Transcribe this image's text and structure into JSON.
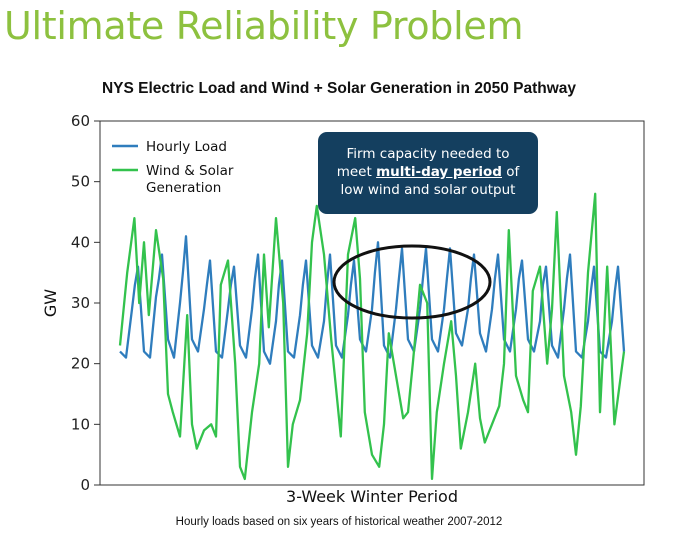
{
  "slide_title": "Ultimate Reliability Problem",
  "footnote": "Hourly loads based on six years of historical weather 2007-2012",
  "callout": {
    "line1": "Firm capacity needed to",
    "prefix": "meet ",
    "emphasis": "multi-day period",
    "suffix": " of",
    "line3": "low wind and solar output"
  },
  "colors": {
    "title_green": "#8dc13f",
    "load_blue": "#2f7dbd",
    "wind_green": "#33c24d",
    "callout_bg": "#143f5f"
  },
  "chart_data": {
    "type": "line",
    "title": "NYS Electric Load and Wind + Solar Generation in 2050 Pathway",
    "xlabel": "3-Week Winter Period",
    "ylabel": "GW",
    "ylim": [
      0,
      60
    ],
    "yticks": [
      0,
      10,
      20,
      30,
      40,
      50,
      60
    ],
    "grid": false,
    "legend_position": "top-left",
    "x_unit": "day",
    "x_range": [
      0,
      21
    ],
    "series": [
      {
        "name": "Hourly Load",
        "color": "#2f7dbd",
        "x": [
          0,
          0.25,
          0.5,
          0.62,
          0.75,
          1,
          1.25,
          1.5,
          1.62,
          1.75,
          2,
          2.25,
          2.5,
          2.62,
          2.75,
          3,
          3.25,
          3.5,
          3.62,
          3.75,
          4,
          4.25,
          4.5,
          4.62,
          4.75,
          5,
          5.25,
          5.5,
          5.62,
          5.75,
          6,
          6.25,
          6.5,
          6.62,
          6.75,
          7,
          7.25,
          7.5,
          7.62,
          7.75,
          8,
          8.25,
          8.5,
          8.62,
          8.75,
          9,
          9.25,
          9.5,
          9.62,
          9.75,
          10,
          10.25,
          10.5,
          10.62,
          10.75,
          11,
          11.25,
          11.5,
          11.62,
          11.75,
          12,
          12.25,
          12.5,
          12.62,
          12.75,
          13,
          13.25,
          13.5,
          13.62,
          13.75,
          14,
          14.25,
          14.5,
          14.62,
          14.75,
          15,
          15.25,
          15.5,
          15.62,
          15.75,
          16,
          16.25,
          16.5,
          16.62,
          16.75,
          17,
          17.25,
          17.5,
          17.62,
          17.75,
          18,
          18.25,
          18.5,
          18.62,
          18.75,
          19,
          19.25,
          19.5,
          19.62,
          19.75,
          20,
          20.25,
          20.5,
          20.62,
          20.75,
          21
        ],
        "y": [
          22,
          21,
          29,
          33,
          36,
          22,
          21,
          31,
          34,
          38,
          24,
          21,
          30,
          35,
          41,
          24,
          22,
          29,
          33,
          37,
          22,
          21,
          29,
          33,
          36,
          23,
          21,
          29,
          34,
          38,
          22,
          20,
          27,
          33,
          37,
          22,
          21,
          28,
          33,
          37,
          23,
          21,
          27,
          33,
          38,
          23,
          21,
          28,
          33,
          37,
          24,
          22,
          29,
          35,
          40,
          23,
          21,
          29,
          34,
          39,
          24,
          22,
          29,
          34,
          39,
          24,
          22,
          29,
          34,
          39,
          25,
          23,
          29,
          34,
          38,
          25,
          22,
          29,
          34,
          38,
          24,
          22,
          29,
          34,
          37,
          24,
          22,
          27,
          33,
          36,
          23,
          21,
          29,
          34,
          38,
          22,
          21,
          27,
          32,
          36,
          22,
          21,
          27,
          32,
          36,
          22
        ]
      },
      {
        "name": "Wind & Solar Generation",
        "color": "#33c24d",
        "x": [
          0,
          0.3,
          0.6,
          0.8,
          1.0,
          1.2,
          1.5,
          1.8,
          2.0,
          2.2,
          2.5,
          2.8,
          3.0,
          3.2,
          3.5,
          3.8,
          4.0,
          4.2,
          4.5,
          4.8,
          5.0,
          5.2,
          5.5,
          5.8,
          6.0,
          6.2,
          6.5,
          6.8,
          7.0,
          7.2,
          7.5,
          7.8,
          8.0,
          8.2,
          8.5,
          8.8,
          9.0,
          9.2,
          9.5,
          9.8,
          10.0,
          10.2,
          10.5,
          10.8,
          11.0,
          11.2,
          11.5,
          11.8,
          12.0,
          12.2,
          12.5,
          12.8,
          13.0,
          13.2,
          13.5,
          13.8,
          14.0,
          14.2,
          14.5,
          14.8,
          15.0,
          15.2,
          15.5,
          15.8,
          16.0,
          16.2,
          16.5,
          16.8,
          17.0,
          17.2,
          17.5,
          17.8,
          18.0,
          18.2,
          18.5,
          18.8,
          19.0,
          19.2,
          19.5,
          19.8,
          20.0,
          20.3,
          20.6,
          21.0
        ],
        "y": [
          23,
          35,
          44,
          30,
          40,
          28,
          42,
          34,
          15,
          12,
          8,
          28,
          10,
          6,
          9,
          10,
          8,
          33,
          37,
          20,
          3,
          1,
          12,
          20,
          38,
          26,
          44,
          30,
          3,
          10,
          14,
          25,
          40,
          46,
          38,
          24,
          16,
          8,
          38,
          44,
          34,
          12,
          5,
          3,
          10,
          25,
          18,
          11,
          12,
          20,
          33,
          30,
          1,
          12,
          20,
          27,
          18,
          6,
          12,
          20,
          11,
          7,
          10,
          13,
          20,
          42,
          18,
          14,
          12,
          32,
          36,
          20,
          29,
          45,
          18,
          12,
          5,
          13,
          35,
          48,
          12,
          36,
          10,
          22
        ]
      }
    ]
  }
}
